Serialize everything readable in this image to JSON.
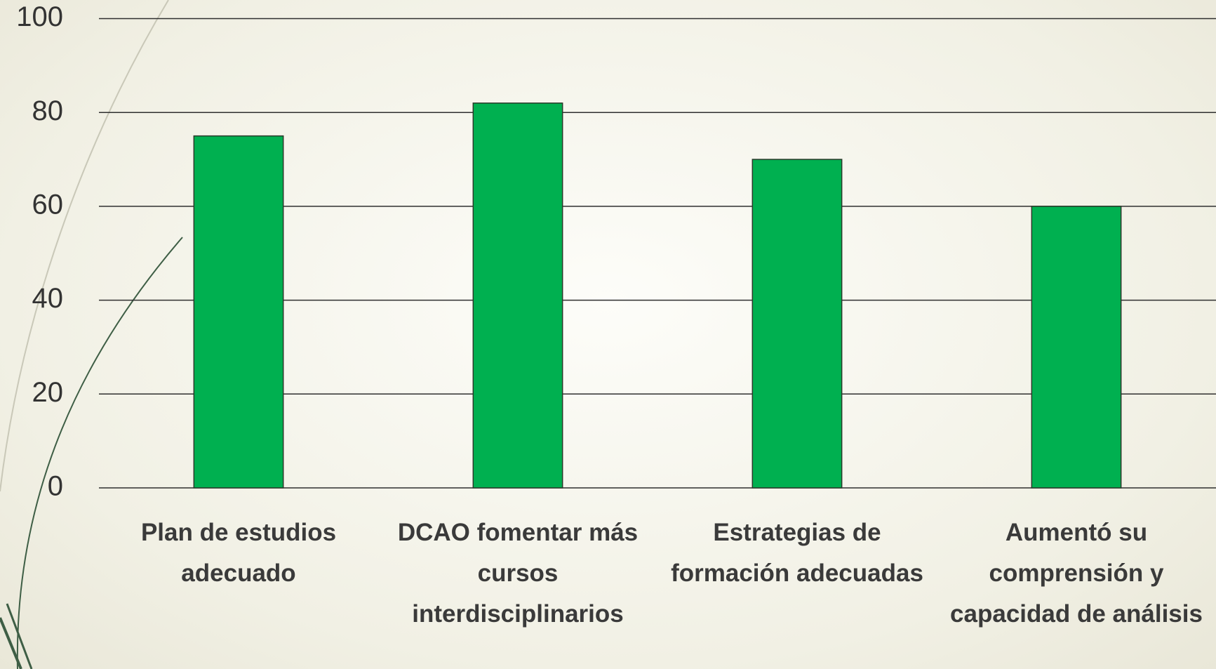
{
  "chart_data": {
    "type": "bar",
    "categories": [
      "Plan de estudios adecuado",
      "DCAO fomentar más cursos interdisciplinarios",
      "Estrategias de formación adecuadas",
      "Aumentó su comprensión y capacidad de análisis"
    ],
    "values": [
      75,
      82,
      70,
      60
    ],
    "color": "#00b050",
    "ylim": [
      0,
      100
    ],
    "yticks": [
      0,
      20,
      40,
      60,
      80,
      100
    ],
    "grid": true
  }
}
